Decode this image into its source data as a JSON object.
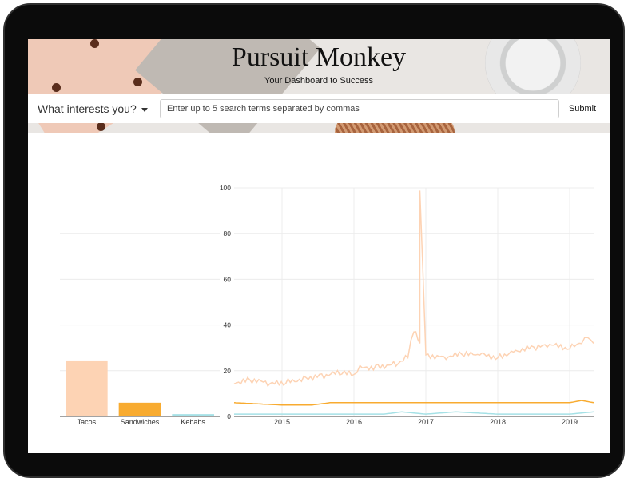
{
  "header": {
    "title": "Pursuit Monkey",
    "subtitle": "Your Dashboard to Success"
  },
  "search": {
    "dropdown_label": "What interests you?",
    "placeholder": "Enter up to 5 search terms separated by commas",
    "submit_label": "Submit"
  },
  "colors": {
    "tacos": "#fdd3b4",
    "sandwiches": "#f8ab30",
    "kebabs": "#a5e1e6"
  },
  "chart_data": [
    {
      "type": "bar",
      "categories": [
        "Tacos",
        "Sandwiches",
        "Kebabs"
      ],
      "values": [
        24.5,
        6,
        1
      ],
      "ylim": [
        0,
        100
      ]
    },
    {
      "type": "line",
      "x_ticks": [
        "2015",
        "2016",
        "2017",
        "2018",
        "2019"
      ],
      "y_ticks": [
        0,
        20,
        40,
        60,
        80,
        100
      ],
      "xlim": [
        "2014-05",
        "2019-05"
      ],
      "ylim": [
        0,
        100
      ],
      "series": [
        {
          "color": "#fdd3b4",
          "points": [
            [
              "2014-05",
              15
            ],
            [
              "2014-08",
              16
            ],
            [
              "2014-11",
              14
            ],
            [
              "2015-02",
              15
            ],
            [
              "2015-05",
              17
            ],
            [
              "2015-08",
              18
            ],
            [
              "2015-11",
              19
            ],
            [
              "2016-01",
              18
            ],
            [
              "2016-02",
              21
            ],
            [
              "2016-05",
              22
            ],
            [
              "2016-08",
              23
            ],
            [
              "2016-10",
              26
            ],
            [
              "2016-11",
              38
            ],
            [
              "2016-12",
              32
            ],
            [
              "2016-12",
              100
            ],
            [
              "2017-01",
              27
            ],
            [
              "2017-04",
              26
            ],
            [
              "2017-07",
              27
            ],
            [
              "2017-10",
              27
            ],
            [
              "2018-01",
              26
            ],
            [
              "2018-04",
              29
            ],
            [
              "2018-07",
              30
            ],
            [
              "2018-10",
              31
            ],
            [
              "2019-01",
              30
            ],
            [
              "2019-03",
              33
            ],
            [
              "2019-04",
              35
            ],
            [
              "2019-05",
              32
            ]
          ]
        },
        {
          "color": "#f8ab30",
          "points": [
            [
              "2014-05",
              6
            ],
            [
              "2015-01",
              5
            ],
            [
              "2015-06",
              5
            ],
            [
              "2015-09",
              6
            ],
            [
              "2016-06",
              6
            ],
            [
              "2017-01",
              6
            ],
            [
              "2017-06",
              6
            ],
            [
              "2018-01",
              6
            ],
            [
              "2018-06",
              6
            ],
            [
              "2019-01",
              6
            ],
            [
              "2019-03",
              7
            ],
            [
              "2019-05",
              6
            ]
          ]
        },
        {
          "color": "#a5e1e6",
          "points": [
            [
              "2014-05",
              1
            ],
            [
              "2015-06",
              1
            ],
            [
              "2016-06",
              1
            ],
            [
              "2016-09",
              2
            ],
            [
              "2017-01",
              1
            ],
            [
              "2017-06",
              2
            ],
            [
              "2018-01",
              1
            ],
            [
              "2018-06",
              1
            ],
            [
              "2019-01",
              1
            ],
            [
              "2019-05",
              2
            ]
          ]
        }
      ]
    }
  ]
}
